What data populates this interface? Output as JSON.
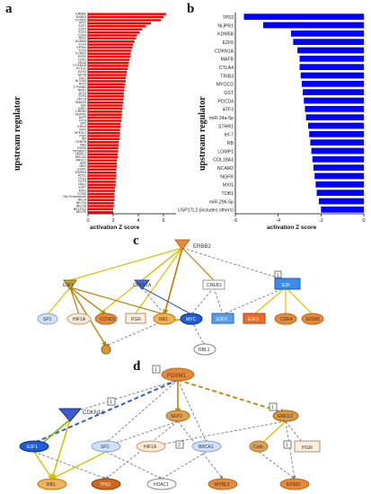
{
  "panel_labels": {
    "a": "a",
    "b": "b",
    "c": "c",
    "d": "d"
  },
  "chart_data": [
    {
      "id": "a",
      "type": "bar",
      "orientation": "horizontal",
      "xlabel": "activation Z score",
      "ylabel": "upstream regulator",
      "xlim": [
        0,
        7
      ],
      "xticks": [
        0,
        2,
        4,
        6
      ],
      "color": "#ff0000",
      "categories": [
        "ERBB2",
        "RABL6",
        "FOXM1",
        "MYC",
        "E2F1",
        "E2F3",
        "E2F2",
        "CDK4",
        "TBX2",
        "KDM5A",
        "KLF4",
        "EP300",
        "TCF3",
        "CCND1",
        "ESR1",
        "CDK1",
        "CBX3",
        "FOXM1B",
        "PTTG1",
        "EZH2",
        "NFYB",
        "TAL1",
        "NCOA3",
        "ATF2",
        "CTNNB1",
        "NRF1",
        "ATF4",
        "E2F6",
        "HIF1A",
        "SMAD3",
        "JUN",
        "HSF1",
        "CREB1",
        "NUPR1",
        "MITF",
        "TP73",
        "SP1",
        "KRAS",
        "IRF2",
        "NFE2L2",
        "PGR",
        "AR",
        "CEBPB",
        "RB1",
        "RXRA",
        "TP53BP1",
        "HDAC1",
        "BRCA1",
        "NR3C1",
        "SRF",
        "MAX",
        "EGR1",
        "ESRRA",
        "PDX1",
        "PLK1",
        "ELF3",
        "PAK1",
        "E2F7",
        "MXI1",
        "CCNE",
        "26s Proteasome",
        "RELA",
        "NELFA",
        "NELFB",
        "NELFCD",
        "NELFE"
      ],
      "values": [
        6.2,
        6.0,
        5.8,
        5.0,
        4.6,
        4.3,
        4.1,
        3.9,
        3.8,
        3.7,
        3.6,
        3.5,
        3.45,
        3.4,
        3.35,
        3.3,
        3.25,
        3.2,
        3.15,
        3.1,
        3.05,
        3.0,
        3.0,
        2.95,
        2.9,
        2.9,
        2.85,
        2.85,
        2.8,
        2.8,
        2.75,
        2.75,
        2.7,
        2.7,
        2.65,
        2.65,
        2.6,
        2.6,
        2.55,
        2.55,
        2.5,
        2.5,
        2.45,
        2.45,
        2.4,
        2.4,
        2.35,
        2.35,
        2.3,
        2.3,
        2.3,
        2.25,
        2.25,
        2.25,
        2.2,
        2.2,
        2.2,
        2.15,
        2.15,
        2.1,
        2.1,
        2.1,
        2.05,
        2.05,
        2.0,
        2.0
      ]
    },
    {
      "id": "b",
      "type": "bar",
      "orientation": "horizontal",
      "xlabel": "activation Z score",
      "ylabel": "upstream regulator",
      "xlim": [
        -6,
        0
      ],
      "xticks": [
        -6,
        -4,
        -2,
        0
      ],
      "color": "#0000ff",
      "categories": [
        "TP53",
        "NUPR1",
        "KDM5B",
        "E2F6",
        "CDKN1A",
        "MAFB",
        "CTLA4",
        "TRIB3",
        "MYOCD",
        "GST",
        "PDCD4",
        "ATF3",
        "miR-34a-5p",
        "STHR1",
        "let-7",
        "RB",
        "LOMP1",
        "COL18A1",
        "NCAM2",
        "NGFR",
        "MXI1",
        "TOB1",
        "miR-296-5p",
        "USP17L2 (includes others)"
      ],
      "values": [
        -5.6,
        -4.7,
        -3.4,
        -3.3,
        -3.1,
        -3.0,
        -3.0,
        -2.95,
        -2.9,
        -2.85,
        -2.8,
        -2.75,
        -2.7,
        -2.6,
        -2.55,
        -2.5,
        -2.45,
        -2.4,
        -2.35,
        -2.3,
        -2.25,
        -2.2,
        -2.1,
        -2.0
      ]
    }
  ],
  "network_c": {
    "nodes": [
      {
        "id": "erbb2",
        "label": "ERBB2"
      },
      {
        "id": "e2f1",
        "label": "E2F1"
      },
      {
        "id": "cdkn1a",
        "label": "CDKN1A"
      },
      {
        "id": "creb1",
        "label": "CREB1"
      },
      {
        "id": "box",
        "label": "E2F"
      },
      {
        "id": "sp1",
        "label": "SP1"
      },
      {
        "id": "hif1a",
        "label": "HIF1A"
      },
      {
        "id": "ccnd1",
        "label": "CCND1"
      },
      {
        "id": "pgr",
        "label": "PGR"
      },
      {
        "id": "rb1",
        "label": "RB1"
      },
      {
        "id": "myc",
        "label": "MYC"
      },
      {
        "id": "e2f2",
        "label": "E2F2"
      },
      {
        "id": "e2f3",
        "label": "E2F3"
      },
      {
        "id": "cdk4",
        "label": "CDK4"
      },
      {
        "id": "ep300",
        "label": "EP300"
      },
      {
        "id": "rbl1",
        "label": "RBL1"
      }
    ],
    "badge": "1"
  },
  "network_d": {
    "nodes": [
      {
        "id": "foxm1",
        "label": "FOXM1"
      },
      {
        "id": "cdkn1a",
        "label": "CDKN1A"
      },
      {
        "id": "skp2",
        "label": "SKP2"
      },
      {
        "id": "erk12",
        "label": "ERK1/2"
      },
      {
        "id": "e2f1",
        "label": "E2F1"
      },
      {
        "id": "sp1",
        "label": "SP1"
      },
      {
        "id": "hif1a",
        "label": "HIF1A"
      },
      {
        "id": "brca1",
        "label": "BRCA1"
      },
      {
        "id": "creb",
        "label": "Creb"
      },
      {
        "id": "pgr",
        "label": "PGR"
      },
      {
        "id": "rb1",
        "label": "RB1"
      },
      {
        "id": "tp63",
        "label": "TP63"
      },
      {
        "id": "hdac1",
        "label": "HDAC1"
      },
      {
        "id": "mybl2",
        "label": "MYBL2"
      },
      {
        "id": "ep300",
        "label": "EP300"
      }
    ],
    "badges": [
      "1",
      "1",
      "1",
      "2",
      "1"
    ]
  }
}
